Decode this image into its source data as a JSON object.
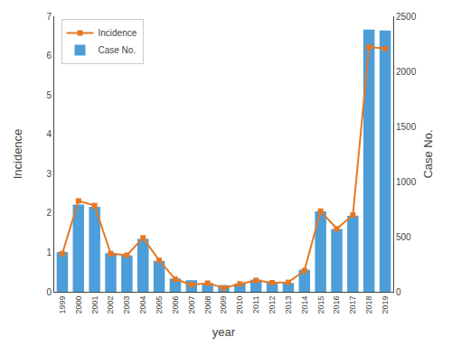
{
  "chart_data": {
    "type": "bar_line",
    "x": [
      1999,
      2000,
      2001,
      2002,
      2003,
      2004,
      2005,
      2006,
      2007,
      2008,
      2009,
      2010,
      2011,
      2012,
      2013,
      2014,
      2015,
      2016,
      2017,
      2018,
      2019
    ],
    "series": [
      {
        "name": "Incidence",
        "type": "line",
        "color": "#E87722",
        "marker": "square",
        "values": [
          0.97,
          2.31,
          2.19,
          0.97,
          0.93,
          1.37,
          0.8,
          0.32,
          0.18,
          0.22,
          0.1,
          0.2,
          0.29,
          0.23,
          0.24,
          0.54,
          2.05,
          1.6,
          1.95,
          6.22,
          6.18
        ]
      },
      {
        "name": "Case No.",
        "type": "bar",
        "color": "#4C9ED9",
        "axis": "y2",
        "values": [
          360,
          790,
          770,
          350,
          330,
          480,
          280,
          120,
          105,
          80,
          60,
          75,
          110,
          90,
          80,
          200,
          730,
          570,
          690,
          2380,
          2370
        ]
      }
    ],
    "xlabel": "year",
    "ylabel": "Incidence",
    "y2label": "Case No.",
    "xlim": [
      1998.5,
      2019.5
    ],
    "xticks": [
      1999,
      2000,
      2001,
      2002,
      2003,
      2004,
      2005,
      2006,
      2007,
      2008,
      2009,
      2010,
      2011,
      2012,
      2013,
      2014,
      2015,
      2016,
      2017,
      2018,
      2019
    ],
    "ylim": [
      0,
      7
    ],
    "yticks": [
      0,
      1,
      2,
      3,
      4,
      5,
      6,
      7
    ],
    "y2lim": [
      0,
      2500
    ],
    "y2ticks": [
      0,
      500,
      1000,
      1500,
      2000,
      2500
    ],
    "grid": false,
    "legend": "upper left"
  }
}
